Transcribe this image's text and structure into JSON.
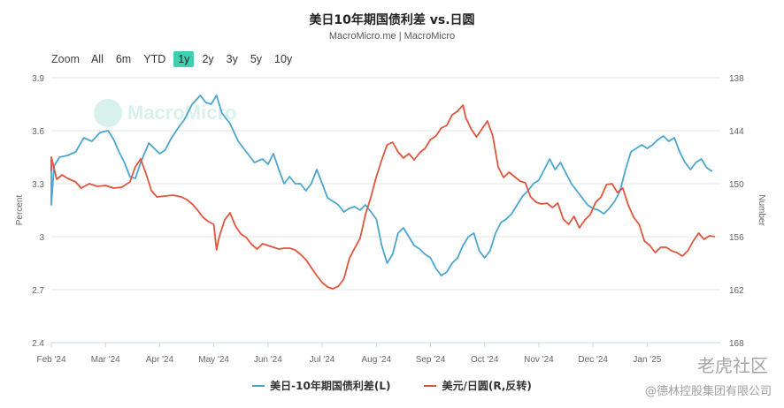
{
  "header": {
    "title": "美日10年期国债利差 vs.日圆",
    "subtitle": "MacroMicro.me | MacroMicro"
  },
  "range_selector": {
    "label": "Zoom",
    "buttons": [
      "All",
      "6m",
      "YTD",
      "1y",
      "2y",
      "3y",
      "5y",
      "10y"
    ],
    "active": "1y"
  },
  "watermarks": {
    "logo_text": "MacroMicro",
    "tiger": "老虎社区",
    "company": "@德林控股集团有限公司"
  },
  "chart_data": {
    "type": "line",
    "title": "美日10年期国债利差 vs.日圆",
    "subtitle": "MacroMicro.me | MacroMicro",
    "x_tick_labels": [
      "Feb '24",
      "Mar '24",
      "Apr '24",
      "May '24",
      "Jun '24",
      "Jul '24",
      "Aug '24",
      "Sep '24",
      "Oct '24",
      "Nov '24",
      "Dec '24",
      "Jan '25"
    ],
    "x_range": [
      0,
      12.35
    ],
    "y_left": {
      "label": "Percent",
      "ticks": [
        "3.9",
        "3.6",
        "3.3",
        "3",
        "2.7",
        "2.4"
      ],
      "range": [
        2.4,
        3.9
      ]
    },
    "y_right": {
      "label": "Number",
      "ticks": [
        "138",
        "144",
        "150",
        "156",
        "162",
        "168"
      ],
      "range": [
        138,
        168
      ],
      "reversed": true
    },
    "grid": true,
    "legend_position": "bottom",
    "series": [
      {
        "name": "美日-10年期国债利差(L)",
        "axis": "left",
        "color": "#4aa6cf",
        "points": [
          [
            -0.2,
            3.41
          ],
          [
            -0.12,
            3.3
          ],
          [
            -0.03,
            3.18
          ],
          [
            0.05,
            3.4
          ],
          [
            0.15,
            3.45
          ],
          [
            0.3,
            3.46
          ],
          [
            0.45,
            3.48
          ],
          [
            0.6,
            3.56
          ],
          [
            0.75,
            3.54
          ],
          [
            0.9,
            3.59
          ],
          [
            1.05,
            3.6
          ],
          [
            1.15,
            3.55
          ],
          [
            1.25,
            3.48
          ],
          [
            1.35,
            3.42
          ],
          [
            1.45,
            3.34
          ],
          [
            1.55,
            3.33
          ],
          [
            1.65,
            3.42
          ],
          [
            1.8,
            3.53
          ],
          [
            1.9,
            3.5
          ],
          [
            2.0,
            3.47
          ],
          [
            2.1,
            3.49
          ],
          [
            2.2,
            3.55
          ],
          [
            2.35,
            3.62
          ],
          [
            2.45,
            3.66
          ],
          [
            2.6,
            3.75
          ],
          [
            2.75,
            3.8
          ],
          [
            2.85,
            3.76
          ],
          [
            2.95,
            3.75
          ],
          [
            3.05,
            3.8
          ],
          [
            3.15,
            3.7
          ],
          [
            3.3,
            3.64
          ],
          [
            3.45,
            3.54
          ],
          [
            3.6,
            3.48
          ],
          [
            3.75,
            3.42
          ],
          [
            3.9,
            3.44
          ],
          [
            4.0,
            3.41
          ],
          [
            4.1,
            3.47
          ],
          [
            4.2,
            3.38
          ],
          [
            4.3,
            3.3
          ],
          [
            4.4,
            3.34
          ],
          [
            4.5,
            3.3
          ],
          [
            4.6,
            3.3
          ],
          [
            4.7,
            3.26
          ],
          [
            4.8,
            3.3
          ],
          [
            4.9,
            3.38
          ],
          [
            5.0,
            3.3
          ],
          [
            5.1,
            3.22
          ],
          [
            5.2,
            3.2
          ],
          [
            5.3,
            3.18
          ],
          [
            5.4,
            3.14
          ],
          [
            5.5,
            3.16
          ],
          [
            5.6,
            3.17
          ],
          [
            5.7,
            3.15
          ],
          [
            5.8,
            3.18
          ],
          [
            5.9,
            3.14
          ],
          [
            6.0,
            3.1
          ],
          [
            6.1,
            2.95
          ],
          [
            6.2,
            2.85
          ],
          [
            6.3,
            2.9
          ],
          [
            6.4,
            3.02
          ],
          [
            6.5,
            3.05
          ],
          [
            6.6,
            3.0
          ],
          [
            6.7,
            2.95
          ],
          [
            6.8,
            2.93
          ],
          [
            6.9,
            2.9
          ],
          [
            7.0,
            2.88
          ],
          [
            7.1,
            2.82
          ],
          [
            7.2,
            2.78
          ],
          [
            7.3,
            2.8
          ],
          [
            7.4,
            2.85
          ],
          [
            7.5,
            2.88
          ],
          [
            7.6,
            2.95
          ],
          [
            7.7,
            3.0
          ],
          [
            7.8,
            3.02
          ],
          [
            7.9,
            2.92
          ],
          [
            8.0,
            2.88
          ],
          [
            8.1,
            2.92
          ],
          [
            8.2,
            3.02
          ],
          [
            8.3,
            3.08
          ],
          [
            8.4,
            3.1
          ],
          [
            8.5,
            3.13
          ],
          [
            8.6,
            3.18
          ],
          [
            8.7,
            3.23
          ],
          [
            8.8,
            3.26
          ],
          [
            8.9,
            3.3
          ],
          [
            9.0,
            3.32
          ],
          [
            9.1,
            3.38
          ],
          [
            9.2,
            3.44
          ],
          [
            9.3,
            3.38
          ],
          [
            9.4,
            3.42
          ],
          [
            9.5,
            3.36
          ],
          [
            9.6,
            3.3
          ],
          [
            9.7,
            3.26
          ],
          [
            9.8,
            3.22
          ],
          [
            9.9,
            3.18
          ],
          [
            10.0,
            3.16
          ],
          [
            10.1,
            3.15
          ],
          [
            10.2,
            3.13
          ],
          [
            10.3,
            3.16
          ],
          [
            10.4,
            3.2
          ],
          [
            10.5,
            3.26
          ],
          [
            10.6,
            3.38
          ],
          [
            10.7,
            3.48
          ],
          [
            10.8,
            3.5
          ],
          [
            10.9,
            3.52
          ],
          [
            11.0,
            3.5
          ],
          [
            11.1,
            3.52
          ],
          [
            11.2,
            3.55
          ],
          [
            11.3,
            3.57
          ],
          [
            11.4,
            3.54
          ],
          [
            11.5,
            3.56
          ],
          [
            11.6,
            3.48
          ],
          [
            11.7,
            3.42
          ],
          [
            11.8,
            3.38
          ],
          [
            11.9,
            3.42
          ],
          [
            12.0,
            3.44
          ],
          [
            12.1,
            3.39
          ],
          [
            12.2,
            3.37
          ]
        ]
      },
      {
        "name": "美元/日圆(R,反转)",
        "axis": "right",
        "color": "#e0553d",
        "points": [
          [
            -0.2,
            148
          ],
          [
            -0.1,
            148.5
          ],
          [
            0.0,
            147
          ],
          [
            0.1,
            149.5
          ],
          [
            0.2,
            149
          ],
          [
            0.3,
            149.4
          ],
          [
            0.45,
            149.8
          ],
          [
            0.55,
            150.5
          ],
          [
            0.7,
            150
          ],
          [
            0.85,
            150.3
          ],
          [
            1.0,
            150.2
          ],
          [
            1.15,
            150.5
          ],
          [
            1.3,
            150.4
          ],
          [
            1.45,
            149.8
          ],
          [
            1.55,
            148.1
          ],
          [
            1.65,
            147.2
          ],
          [
            1.75,
            148.9
          ],
          [
            1.85,
            150.8
          ],
          [
            1.95,
            151.5
          ],
          [
            2.1,
            151.4
          ],
          [
            2.25,
            151.3
          ],
          [
            2.4,
            151.5
          ],
          [
            2.5,
            151.8
          ],
          [
            2.6,
            152.3
          ],
          [
            2.7,
            153
          ],
          [
            2.8,
            153.8
          ],
          [
            2.9,
            154.3
          ],
          [
            3.0,
            154.6
          ],
          [
            3.05,
            157.5
          ],
          [
            3.1,
            156
          ],
          [
            3.2,
            154.1
          ],
          [
            3.3,
            153.3
          ],
          [
            3.4,
            154.8
          ],
          [
            3.5,
            155.7
          ],
          [
            3.6,
            156.1
          ],
          [
            3.7,
            156.9
          ],
          [
            3.8,
            157.4
          ],
          [
            3.9,
            156.8
          ],
          [
            4.0,
            157
          ],
          [
            4.1,
            157.2
          ],
          [
            4.2,
            157.4
          ],
          [
            4.3,
            157.3
          ],
          [
            4.4,
            157.3
          ],
          [
            4.5,
            157.5
          ],
          [
            4.6,
            158
          ],
          [
            4.7,
            158.6
          ],
          [
            4.8,
            159.5
          ],
          [
            4.9,
            160.4
          ],
          [
            5.0,
            161.2
          ],
          [
            5.1,
            161.7
          ],
          [
            5.2,
            161.9
          ],
          [
            5.3,
            161.6
          ],
          [
            5.4,
            160.8
          ],
          [
            5.5,
            158.5
          ],
          [
            5.6,
            157.3
          ],
          [
            5.7,
            156.2
          ],
          [
            5.8,
            153.5
          ],
          [
            5.9,
            151.5
          ],
          [
            6.0,
            149.2
          ],
          [
            6.1,
            147.3
          ],
          [
            6.2,
            145.6
          ],
          [
            6.3,
            145.3
          ],
          [
            6.4,
            146.4
          ],
          [
            6.5,
            147.1
          ],
          [
            6.6,
            146.6
          ],
          [
            6.7,
            147.3
          ],
          [
            6.8,
            146.5
          ],
          [
            6.9,
            146
          ],
          [
            7.0,
            145
          ],
          [
            7.1,
            144.6
          ],
          [
            7.2,
            143.7
          ],
          [
            7.3,
            143.4
          ],
          [
            7.4,
            142.2
          ],
          [
            7.5,
            141.8
          ],
          [
            7.6,
            141.1
          ],
          [
            7.65,
            142.5
          ],
          [
            7.75,
            143.8
          ],
          [
            7.85,
            144.7
          ],
          [
            7.95,
            143.8
          ],
          [
            8.05,
            142.9
          ],
          [
            8.15,
            144.6
          ],
          [
            8.25,
            148.1
          ],
          [
            8.35,
            149.3
          ],
          [
            8.45,
            148.7
          ],
          [
            8.55,
            149.2
          ],
          [
            8.65,
            149.7
          ],
          [
            8.75,
            149.9
          ],
          [
            8.85,
            151.5
          ],
          [
            8.95,
            152.1
          ],
          [
            9.05,
            152.3
          ],
          [
            9.15,
            152.2
          ],
          [
            9.25,
            152.7
          ],
          [
            9.35,
            152.2
          ],
          [
            9.45,
            154
          ],
          [
            9.55,
            154.6
          ],
          [
            9.65,
            153.7
          ],
          [
            9.75,
            155
          ],
          [
            9.85,
            154.1
          ],
          [
            9.95,
            153.5
          ],
          [
            10.05,
            152.1
          ],
          [
            10.15,
            151.5
          ],
          [
            10.25,
            150.1
          ],
          [
            10.35,
            150
          ],
          [
            10.45,
            151
          ],
          [
            10.55,
            150.5
          ],
          [
            10.65,
            152.4
          ],
          [
            10.75,
            153.8
          ],
          [
            10.85,
            154.6
          ],
          [
            10.95,
            156.5
          ],
          [
            11.05,
            157
          ],
          [
            11.15,
            157.8
          ],
          [
            11.25,
            157.2
          ],
          [
            11.35,
            157.2
          ],
          [
            11.45,
            157.6
          ],
          [
            11.55,
            157.8
          ],
          [
            11.65,
            158.2
          ],
          [
            11.75,
            157.6
          ],
          [
            11.85,
            156.5
          ],
          [
            11.95,
            155.6
          ],
          [
            12.05,
            156.3
          ],
          [
            12.15,
            155.9
          ],
          [
            12.25,
            156
          ]
        ]
      }
    ]
  }
}
